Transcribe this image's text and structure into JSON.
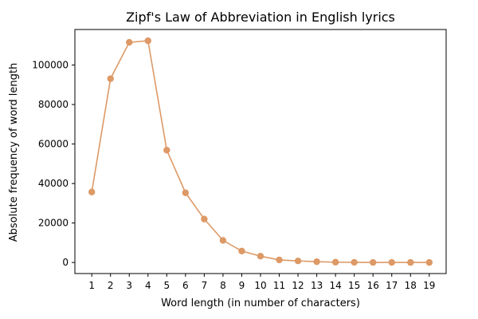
{
  "chart_data": {
    "type": "line",
    "title": "Zipf's Law of Abbreviation in English lyrics",
    "xlabel": "Word length (in number of characters)",
    "ylabel": "Absolute frequency of word length",
    "x": [
      1,
      2,
      3,
      4,
      5,
      6,
      7,
      8,
      9,
      10,
      11,
      12,
      13,
      14,
      15,
      16,
      17,
      18,
      19
    ],
    "series": [
      {
        "values": [
          35700,
          93100,
          111500,
          112300,
          56900,
          35300,
          22000,
          11200,
          5800,
          3200,
          1300,
          800,
          400,
          150,
          80,
          40,
          20,
          10,
          10
        ],
        "color": "#dd9966"
      }
    ],
    "xlim": [
      0.1,
      19.9
    ],
    "ylim": [
      -5600,
      118000
    ],
    "yticks": [
      0,
      20000,
      40000,
      60000,
      80000,
      100000
    ],
    "grid": false,
    "markers": "circle"
  }
}
